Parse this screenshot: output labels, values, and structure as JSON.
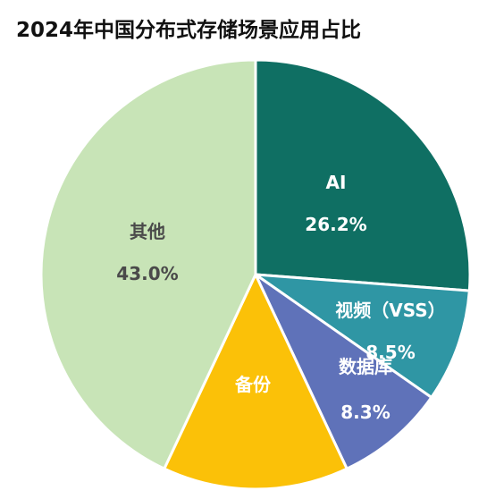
{
  "chart_data": {
    "type": "pie",
    "title": "2024年中国分布式存储场景应用占比",
    "slices": [
      {
        "label": "AI",
        "value_label": "26.2%",
        "value": 26.2,
        "color": "#0f6f63",
        "text_color": "#ffffff"
      },
      {
        "label": "视频（VSS）",
        "value_label": "8.5%",
        "value": 8.5,
        "color": "#2f96a4",
        "text_color": "#ffffff"
      },
      {
        "label": "数据库",
        "value_label": "8.3%",
        "value": 8.3,
        "color": "#5f72b9",
        "text_color": "#ffffff"
      },
      {
        "label": "备份",
        "value_label": "",
        "value": 14.0,
        "color": "#fbc108",
        "text_color": "#ffffff"
      },
      {
        "label": "其他",
        "value_label": "43.0%",
        "value": 43.0,
        "color": "#c8e4b7",
        "text_color": "#4a4a4a"
      }
    ]
  }
}
